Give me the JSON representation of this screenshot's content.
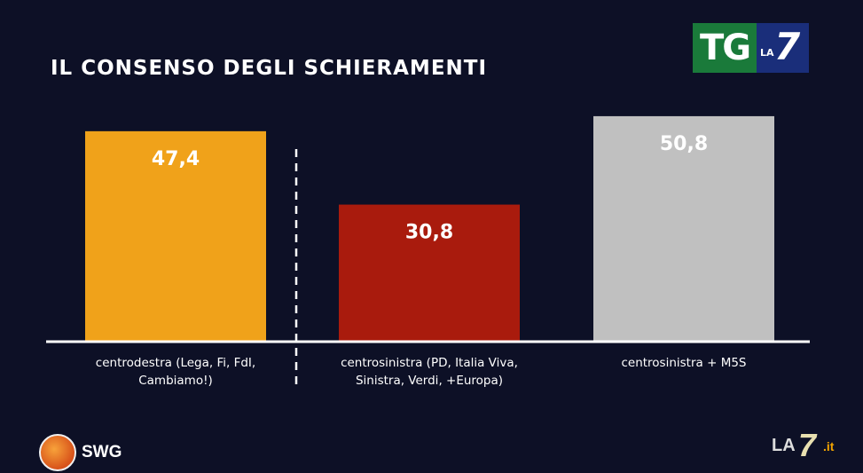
{
  "logo": {
    "tg": "TG",
    "la": "LA",
    "seven": "7"
  },
  "chart_data": {
    "type": "bar",
    "title": "IL CONSENSO DEGLI SCHIERAMENTI",
    "categories": [
      [
        "centrodestra (Lega, Fi, FdI,",
        "Cambiamo!)"
      ],
      [
        "centrosinistra (PD, Italia Viva,",
        "Sinistra, Verdi, +Europa)"
      ],
      [
        "centrosinistra + M5S"
      ]
    ],
    "values": [
      47.4,
      30.8,
      50.8
    ],
    "value_labels": [
      "47,4",
      "30,8",
      "50,8"
    ],
    "colors": [
      "#f0a21a",
      "#a91b0d",
      "#c0c0c0"
    ],
    "ylim": [
      0,
      55
    ],
    "grid": false,
    "divider_after_index": 0
  },
  "footer": {
    "source": "SWG",
    "brand_la": "LA",
    "brand_seven": "7",
    "brand_it": ".it"
  }
}
